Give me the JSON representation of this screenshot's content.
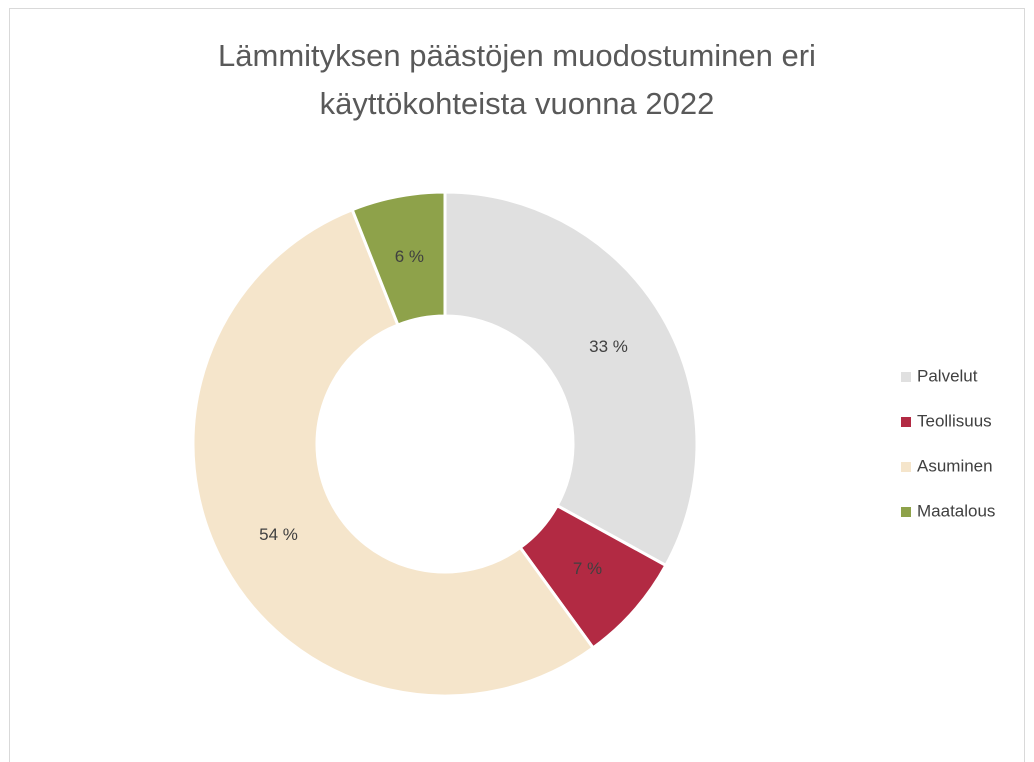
{
  "chart_data": {
    "type": "donut",
    "title": "Lämmityksen päästöjen muodostuminen eri käyttökohteista vuonna 2022",
    "categories": [
      "Palvelut",
      "Teollisuus",
      "Asuminen",
      "Maatalous"
    ],
    "values": [
      33,
      7,
      54,
      6
    ],
    "value_labels": [
      "33 %",
      "7 %",
      "54 %",
      "6 %"
    ],
    "colors": [
      "#e0e0e0",
      "#b22a43",
      "#f5e5cb",
      "#8ea24a"
    ],
    "legend": "right"
  }
}
